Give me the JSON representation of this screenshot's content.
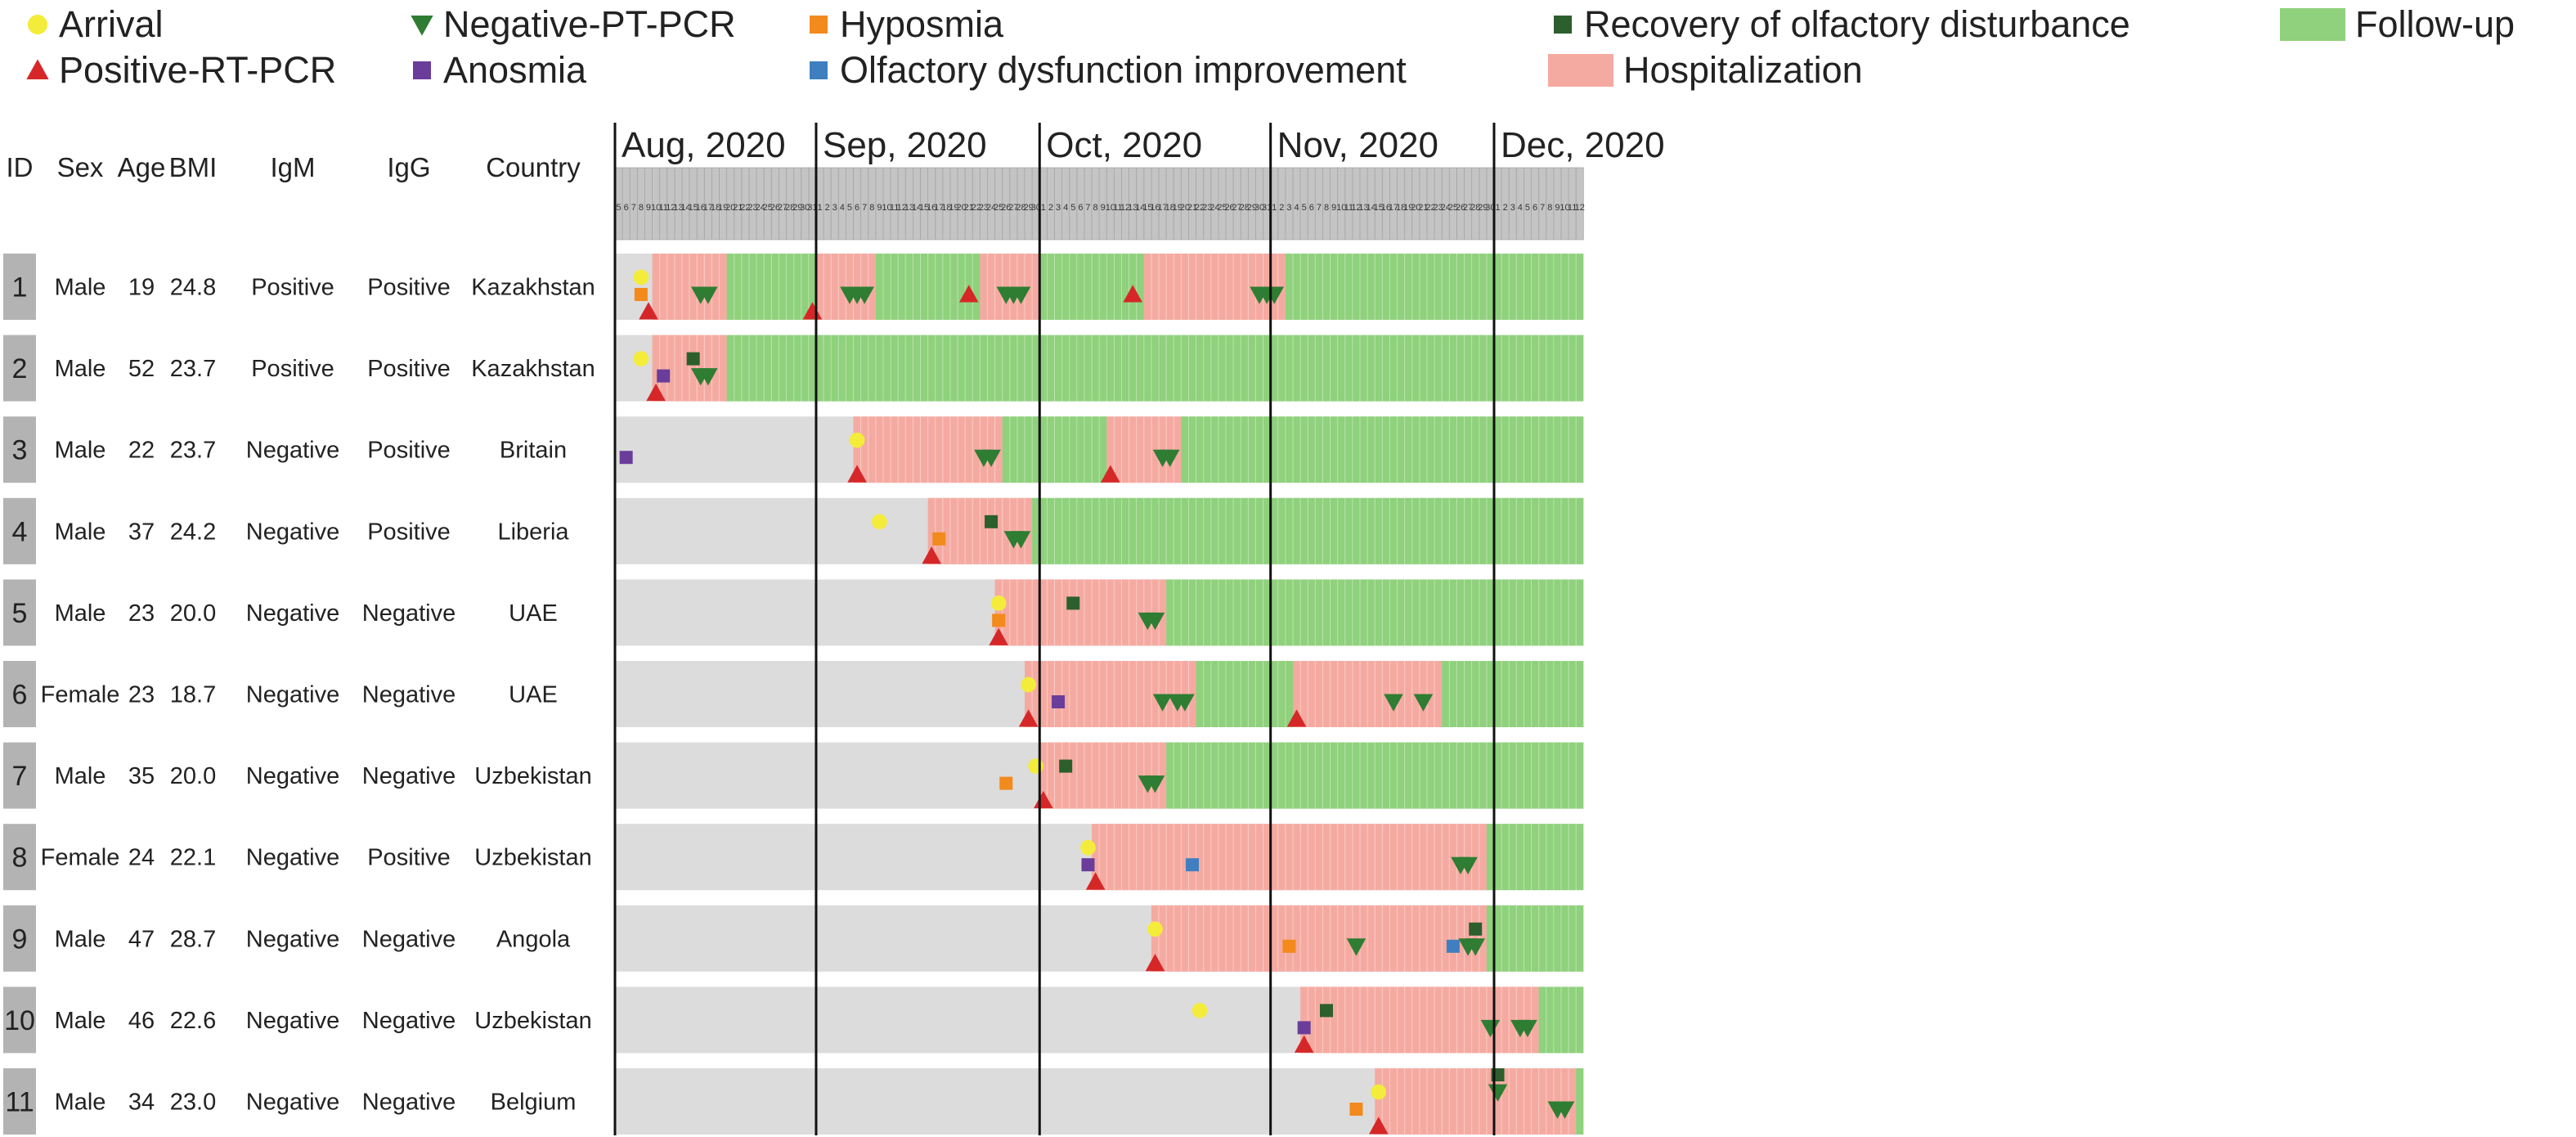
{
  "legend": [
    {
      "marker": "circle",
      "color": "#f3ec3a",
      "label": "Arrival"
    },
    {
      "marker": "tri-down",
      "color": "#2e7d32",
      "label": "Negative-PT-PCR"
    },
    {
      "marker": "square",
      "color": "#f28a1c",
      "label": "Hyposmia"
    },
    {
      "marker": "square",
      "color": "#2c5f2d",
      "label": "Recovery of olfactory disturbance"
    },
    {
      "marker": "bar",
      "color": "#8fd17c",
      "label": "Follow-up"
    },
    {
      "marker": "tri-up",
      "color": "#d62728",
      "label": "Positive-RT-PCR"
    },
    {
      "marker": "square",
      "color": "#6a3d9a",
      "label": "Anosmia"
    },
    {
      "marker": "square",
      "color": "#3f7fc0",
      "label": "Olfactory dysfunction improvement"
    },
    {
      "marker": "bar",
      "color": "#f5aaa1",
      "label": "Hospitalization"
    }
  ],
  "columns": [
    "ID",
    "Sex",
    "Age",
    "BMI",
    "IgM",
    "IgG",
    "Country"
  ],
  "months": [
    {
      "label": "Aug, 2020",
      "start": "2020-08-05",
      "days": [
        5,
        6,
        7,
        8,
        9,
        10,
        11,
        12,
        13,
        14,
        15,
        16,
        17,
        18,
        19,
        20,
        21,
        22,
        23,
        24,
        25,
        26,
        27,
        28,
        29,
        30,
        31
      ]
    },
    {
      "label": "Sep, 2020",
      "start": "2020-09-01",
      "days": [
        1,
        2,
        3,
        4,
        5,
        6,
        7,
        8,
        9,
        10,
        11,
        12,
        13,
        14,
        15,
        16,
        17,
        18,
        19,
        20,
        21,
        22,
        23,
        24,
        25,
        26,
        27,
        28,
        29,
        30
      ]
    },
    {
      "label": "Oct, 2020",
      "start": "2020-10-01",
      "days": [
        1,
        2,
        3,
        4,
        5,
        6,
        7,
        8,
        9,
        10,
        11,
        12,
        13,
        14,
        15,
        16,
        17,
        18,
        19,
        20,
        21,
        22,
        23,
        24,
        25,
        26,
        27,
        28,
        29,
        30,
        31
      ]
    },
    {
      "label": "Nov, 2020",
      "start": "2020-11-01",
      "days": [
        1,
        2,
        3,
        4,
        5,
        6,
        7,
        8,
        9,
        10,
        11,
        12,
        13,
        14,
        15,
        16,
        17,
        18,
        19,
        20,
        21,
        22,
        23,
        24,
        25,
        26,
        27,
        28,
        29,
        30
      ]
    },
    {
      "label": "Dec, 2020",
      "start": "2020-12-01",
      "days": [
        1,
        2,
        3,
        4,
        5,
        6,
        7,
        8,
        9,
        10,
        11,
        12
      ]
    }
  ],
  "colors": {
    "timeline_bg": "#dcdcdc",
    "hospitalization": "#f5aaa1",
    "follow_up": "#8fd17c",
    "header_bg": "#c4c4c4",
    "id_box": "#b3b3b3",
    "arrival": "#f3ec3a",
    "negative_pcr": "#2e7d32",
    "positive_pcr": "#d62728",
    "hyposmia": "#f28a1c",
    "anosmia": "#6a3d9a",
    "olfactory_improvement": "#3f7fc0",
    "olfactory_recovery": "#2c5f2d"
  },
  "chart_data": {
    "type": "timeline",
    "x_range": [
      "2020-08-05",
      "2020-12-12"
    ],
    "rows": [
      {
        "id": "1",
        "sex": "Male",
        "age": "19",
        "bmi": "24.8",
        "igm": "Positive",
        "igg": "Positive",
        "country": "Kazakhstan",
        "hospitalization": [
          [
            "2020-08-10",
            "2020-08-19"
          ],
          [
            "2020-09-01",
            "2020-09-08"
          ],
          [
            "2020-09-23",
            "2020-09-30"
          ],
          [
            "2020-10-15",
            "2020-11-02"
          ]
        ],
        "follow_up": [
          [
            "2020-08-20",
            "2020-08-31"
          ],
          [
            "2020-09-09",
            "2020-09-22"
          ],
          [
            "2020-10-01",
            "2020-10-14"
          ],
          [
            "2020-11-03",
            "2020-12-12"
          ]
        ],
        "events": [
          {
            "type": "arrival",
            "date": "2020-08-08",
            "stack": 2
          },
          {
            "type": "hyposmia",
            "date": "2020-08-08",
            "stack": 1
          },
          {
            "type": "positive_pcr",
            "date": "2020-08-09",
            "stack": 0
          },
          {
            "type": "negative_pcr",
            "date": "2020-08-16",
            "stack": 1
          },
          {
            "type": "negative_pcr",
            "date": "2020-08-17",
            "stack": 1
          },
          {
            "type": "positive_pcr",
            "date": "2020-08-31",
            "stack": 0
          },
          {
            "type": "negative_pcr",
            "date": "2020-09-05",
            "stack": 1
          },
          {
            "type": "negative_pcr",
            "date": "2020-09-06",
            "stack": 1
          },
          {
            "type": "negative_pcr",
            "date": "2020-09-07",
            "stack": 1
          },
          {
            "type": "positive_pcr",
            "date": "2020-09-21",
            "stack": 1
          },
          {
            "type": "negative_pcr",
            "date": "2020-09-26",
            "stack": 1
          },
          {
            "type": "negative_pcr",
            "date": "2020-09-27",
            "stack": 1
          },
          {
            "type": "negative_pcr",
            "date": "2020-09-28",
            "stack": 1
          },
          {
            "type": "positive_pcr",
            "date": "2020-10-13",
            "stack": 1
          },
          {
            "type": "negative_pcr",
            "date": "2020-10-30",
            "stack": 1
          },
          {
            "type": "negative_pcr",
            "date": "2020-10-31",
            "stack": 1
          },
          {
            "type": "negative_pcr",
            "date": "2020-11-01",
            "stack": 1
          }
        ]
      },
      {
        "id": "2",
        "sex": "Male",
        "age": "52",
        "bmi": "23.7",
        "igm": "Positive",
        "igg": "Positive",
        "country": "Kazakhstan",
        "hospitalization": [
          [
            "2020-08-10",
            "2020-08-19"
          ]
        ],
        "follow_up": [
          [
            "2020-08-20",
            "2020-12-12"
          ]
        ],
        "events": [
          {
            "type": "arrival",
            "date": "2020-08-08",
            "stack": 2
          },
          {
            "type": "anosmia",
            "date": "2020-08-11",
            "stack": 1
          },
          {
            "type": "positive_pcr",
            "date": "2020-08-10",
            "stack": 0
          },
          {
            "type": "olfactory_recovery",
            "date": "2020-08-15",
            "stack": 2
          },
          {
            "type": "negative_pcr",
            "date": "2020-08-16",
            "stack": 1
          },
          {
            "type": "negative_pcr",
            "date": "2020-08-17",
            "stack": 1
          }
        ]
      },
      {
        "id": "3",
        "sex": "Male",
        "age": "22",
        "bmi": "23.7",
        "igm": "Negative",
        "igg": "Positive",
        "country": "Britain",
        "hospitalization": [
          [
            "2020-09-06",
            "2020-09-25"
          ],
          [
            "2020-10-10",
            "2020-10-19"
          ]
        ],
        "follow_up": [
          [
            "2020-09-26",
            "2020-10-09"
          ],
          [
            "2020-10-20",
            "2020-12-12"
          ]
        ],
        "events": [
          {
            "type": "anosmia",
            "date": "2020-08-06",
            "stack": 1
          },
          {
            "type": "arrival",
            "date": "2020-09-06",
            "stack": 2
          },
          {
            "type": "positive_pcr",
            "date": "2020-09-06",
            "stack": 0
          },
          {
            "type": "negative_pcr",
            "date": "2020-09-23",
            "stack": 1
          },
          {
            "type": "negative_pcr",
            "date": "2020-09-24",
            "stack": 1
          },
          {
            "type": "positive_pcr",
            "date": "2020-10-10",
            "stack": 0
          },
          {
            "type": "negative_pcr",
            "date": "2020-10-17",
            "stack": 1
          },
          {
            "type": "negative_pcr",
            "date": "2020-10-18",
            "stack": 1
          }
        ]
      },
      {
        "id": "4",
        "sex": "Male",
        "age": "37",
        "bmi": "24.2",
        "igm": "Negative",
        "igg": "Positive",
        "country": "Liberia",
        "hospitalization": [
          [
            "2020-09-16",
            "2020-09-29"
          ]
        ],
        "follow_up": [
          [
            "2020-09-30",
            "2020-12-12"
          ]
        ],
        "events": [
          {
            "type": "arrival",
            "date": "2020-09-09",
            "stack": 2
          },
          {
            "type": "hyposmia",
            "date": "2020-09-17",
            "stack": 1
          },
          {
            "type": "positive_pcr",
            "date": "2020-09-16",
            "stack": 0
          },
          {
            "type": "olfactory_recovery",
            "date": "2020-09-24",
            "stack": 2
          },
          {
            "type": "negative_pcr",
            "date": "2020-09-27",
            "stack": 1
          },
          {
            "type": "negative_pcr",
            "date": "2020-09-28",
            "stack": 1
          }
        ]
      },
      {
        "id": "5",
        "sex": "Male",
        "age": "23",
        "bmi": "20.0",
        "igm": "Negative",
        "igg": "Negative",
        "country": "UAE",
        "hospitalization": [
          [
            "2020-09-25",
            "2020-10-17"
          ]
        ],
        "follow_up": [
          [
            "2020-10-18",
            "2020-12-12"
          ]
        ],
        "events": [
          {
            "type": "arrival",
            "date": "2020-09-25",
            "stack": 2
          },
          {
            "type": "hyposmia",
            "date": "2020-09-25",
            "stack": 1
          },
          {
            "type": "positive_pcr",
            "date": "2020-09-25",
            "stack": 0
          },
          {
            "type": "olfactory_recovery",
            "date": "2020-10-05",
            "stack": 2
          },
          {
            "type": "negative_pcr",
            "date": "2020-10-15",
            "stack": 1
          },
          {
            "type": "negative_pcr",
            "date": "2020-10-16",
            "stack": 1
          }
        ]
      },
      {
        "id": "6",
        "sex": "Female",
        "age": "23",
        "bmi": "18.7",
        "igm": "Negative",
        "igg": "Negative",
        "country": "UAE",
        "hospitalization": [
          [
            "2020-09-29",
            "2020-10-21"
          ],
          [
            "2020-11-04",
            "2020-11-23"
          ]
        ],
        "follow_up": [
          [
            "2020-10-22",
            "2020-11-03"
          ],
          [
            "2020-11-24",
            "2020-12-12"
          ]
        ],
        "events": [
          {
            "type": "arrival",
            "date": "2020-09-29",
            "stack": 2
          },
          {
            "type": "positive_pcr",
            "date": "2020-09-29",
            "stack": 0
          },
          {
            "type": "anosmia",
            "date": "2020-10-03",
            "stack": 1
          },
          {
            "type": "negative_pcr",
            "date": "2020-10-17",
            "stack": 1
          },
          {
            "type": "negative_pcr",
            "date": "2020-10-19",
            "stack": 1
          },
          {
            "type": "negative_pcr",
            "date": "2020-10-20",
            "stack": 1
          },
          {
            "type": "positive_pcr",
            "date": "2020-11-04",
            "stack": 0
          },
          {
            "type": "negative_pcr",
            "date": "2020-11-17",
            "stack": 1
          },
          {
            "type": "negative_pcr",
            "date": "2020-11-21",
            "stack": 1
          }
        ]
      },
      {
        "id": "7",
        "sex": "Male",
        "age": "35",
        "bmi": "20.0",
        "igm": "Negative",
        "igg": "Negative",
        "country": "Uzbekistan",
        "hospitalization": [
          [
            "2020-10-01",
            "2020-10-17"
          ]
        ],
        "follow_up": [
          [
            "2020-10-18",
            "2020-12-12"
          ]
        ],
        "events": [
          {
            "type": "hyposmia",
            "date": "2020-09-26",
            "stack": 1
          },
          {
            "type": "arrival",
            "date": "2020-09-30",
            "stack": 2
          },
          {
            "type": "positive_pcr",
            "date": "2020-10-01",
            "stack": 0
          },
          {
            "type": "olfactory_recovery",
            "date": "2020-10-04",
            "stack": 2
          },
          {
            "type": "negative_pcr",
            "date": "2020-10-15",
            "stack": 1
          },
          {
            "type": "negative_pcr",
            "date": "2020-10-16",
            "stack": 1
          }
        ]
      },
      {
        "id": "8",
        "sex": "Female",
        "age": "24",
        "bmi": "22.1",
        "igm": "Negative",
        "igg": "Positive",
        "country": "Uzbekistan",
        "hospitalization": [
          [
            "2020-10-08",
            "2020-11-29"
          ]
        ],
        "follow_up": [
          [
            "2020-11-30",
            "2020-12-12"
          ]
        ],
        "events": [
          {
            "type": "arrival",
            "date": "2020-10-07",
            "stack": 2
          },
          {
            "type": "anosmia",
            "date": "2020-10-07",
            "stack": 1
          },
          {
            "type": "positive_pcr",
            "date": "2020-10-08",
            "stack": 0
          },
          {
            "type": "olfactory_improvement",
            "date": "2020-10-21",
            "stack": 1
          },
          {
            "type": "negative_pcr",
            "date": "2020-11-26",
            "stack": 1
          },
          {
            "type": "negative_pcr",
            "date": "2020-11-27",
            "stack": 1
          }
        ]
      },
      {
        "id": "9",
        "sex": "Male",
        "age": "47",
        "bmi": "28.7",
        "igm": "Negative",
        "igg": "Negative",
        "country": "Angola",
        "hospitalization": [
          [
            "2020-10-16",
            "2020-11-29"
          ]
        ],
        "follow_up": [
          [
            "2020-11-30",
            "2020-12-12"
          ]
        ],
        "events": [
          {
            "type": "arrival",
            "date": "2020-10-16",
            "stack": 2
          },
          {
            "type": "positive_pcr",
            "date": "2020-10-16",
            "stack": 0
          },
          {
            "type": "hyposmia",
            "date": "2020-11-03",
            "stack": 1
          },
          {
            "type": "negative_pcr",
            "date": "2020-11-12",
            "stack": 1
          },
          {
            "type": "olfactory_improvement",
            "date": "2020-11-25",
            "stack": 1
          },
          {
            "type": "olfactory_recovery",
            "date": "2020-11-28",
            "stack": 2
          },
          {
            "type": "negative_pcr",
            "date": "2020-11-27",
            "stack": 1
          },
          {
            "type": "negative_pcr",
            "date": "2020-11-28",
            "stack": 1
          }
        ]
      },
      {
        "id": "10",
        "sex": "Male",
        "age": "46",
        "bmi": "22.6",
        "igm": "Negative",
        "igg": "Negative",
        "country": "Uzbekistan",
        "hospitalization": [
          [
            "2020-11-05",
            "2020-12-06"
          ]
        ],
        "follow_up": [
          [
            "2020-12-07",
            "2020-12-12"
          ]
        ],
        "events": [
          {
            "type": "arrival",
            "date": "2020-10-22",
            "stack": 2
          },
          {
            "type": "anosmia",
            "date": "2020-11-05",
            "stack": 1
          },
          {
            "type": "positive_pcr",
            "date": "2020-11-05",
            "stack": 0
          },
          {
            "type": "olfactory_recovery",
            "date": "2020-11-08",
            "stack": 2
          },
          {
            "type": "negative_pcr",
            "date": "2020-11-30",
            "stack": 1
          },
          {
            "type": "negative_pcr",
            "date": "2020-12-04",
            "stack": 1
          },
          {
            "type": "negative_pcr",
            "date": "2020-12-05",
            "stack": 1
          }
        ]
      },
      {
        "id": "11",
        "sex": "Male",
        "age": "34",
        "bmi": "23.0",
        "igm": "Negative",
        "igg": "Negative",
        "country": "Belgium",
        "hospitalization": [
          [
            "2020-11-15",
            "2020-12-11"
          ]
        ],
        "follow_up": [
          [
            "2020-12-12",
            "2020-12-12"
          ]
        ],
        "events": [
          {
            "type": "hyposmia",
            "date": "2020-11-12",
            "stack": 1
          },
          {
            "type": "arrival",
            "date": "2020-11-15",
            "stack": 2
          },
          {
            "type": "positive_pcr",
            "date": "2020-11-15",
            "stack": 0
          },
          {
            "type": "olfactory_recovery",
            "date": "2020-12-01",
            "stack": 3
          },
          {
            "type": "negative_pcr",
            "date": "2020-12-01",
            "stack": 2
          },
          {
            "type": "negative_pcr",
            "date": "2020-12-09",
            "stack": 1
          },
          {
            "type": "negative_pcr",
            "date": "2020-12-10",
            "stack": 1
          }
        ]
      }
    ]
  }
}
